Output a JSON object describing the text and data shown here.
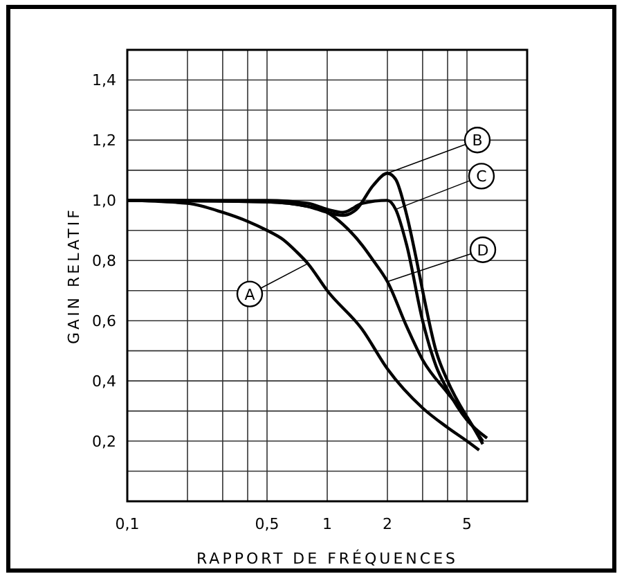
{
  "chart_data": {
    "type": "line",
    "xlabel": "RAPPORT DE FRÉQUENCES",
    "ylabel": "GAIN RELATIF",
    "log": "x",
    "xlim": [
      0.1,
      10
    ],
    "ylim": [
      0,
      1.5
    ],
    "xticks": [
      {
        "value": 0.1,
        "label": "0,1"
      },
      {
        "value": 0.2,
        "label": null
      },
      {
        "value": 0.3,
        "label": null
      },
      {
        "value": 0.4,
        "label": null
      },
      {
        "value": 0.5,
        "label": "0,5"
      },
      1,
      2,
      {
        "value": 3,
        "label": null
      },
      {
        "value": 4,
        "label": null
      },
      5,
      {
        "value": 10,
        "label": null
      }
    ],
    "yticks": [
      {
        "value": 0.1,
        "label": null
      },
      {
        "value": 0.2,
        "label": "0,2"
      },
      {
        "value": 0.3,
        "label": null
      },
      {
        "value": 0.4,
        "label": "0,4"
      },
      {
        "value": 0.5,
        "label": null
      },
      {
        "value": 0.6,
        "label": "0,6"
      },
      {
        "value": 0.7,
        "label": null
      },
      {
        "value": 0.8,
        "label": "0,8"
      },
      {
        "value": 0.9,
        "label": null
      },
      {
        "value": 1.0,
        "label": "1,0"
      },
      {
        "value": 1.1,
        "label": null
      },
      {
        "value": 1.2,
        "label": "1,2"
      },
      {
        "value": 1.3,
        "label": null
      },
      {
        "value": 1.4,
        "label": "1,4"
      }
    ],
    "grid": true,
    "line_style": "solid",
    "marker": "none",
    "series": [
      {
        "name": "A",
        "color": "#000000",
        "x": [
          0.1,
          0.2,
          0.3,
          0.4,
          0.5,
          0.6,
          0.7,
          0.8,
          1,
          1.5,
          2,
          3,
          4,
          5,
          5.75
        ],
        "values": [
          1.0,
          0.99,
          0.96,
          0.93,
          0.9,
          0.87,
          0.83,
          0.79,
          0.7,
          0.57,
          0.44,
          0.31,
          0.245,
          0.2,
          0.17
        ]
      },
      {
        "name": "B",
        "color": "#000000",
        "x": [
          0.1,
          0.5,
          0.8,
          1,
          1.2,
          1.4,
          1.7,
          2,
          2.2,
          2.5,
          2.8,
          3,
          3.5,
          4,
          5,
          6
        ],
        "values": [
          1.0,
          0.995,
          0.98,
          0.96,
          0.95,
          0.97,
          1.05,
          1.09,
          1.07,
          0.95,
          0.8,
          0.7,
          0.5,
          0.4,
          0.28,
          0.2
        ]
      },
      {
        "name": "C",
        "color": "#000000",
        "x": [
          0.1,
          0.5,
          0.8,
          1,
          1.2,
          1.5,
          2,
          2.2,
          2.5,
          3,
          3.5,
          4,
          5,
          6.3
        ],
        "values": [
          1.0,
          1.0,
          0.99,
          0.97,
          0.96,
          0.99,
          1.0,
          0.97,
          0.85,
          0.6,
          0.45,
          0.37,
          0.27,
          0.21
        ]
      },
      {
        "name": "D",
        "color": "#000000",
        "x": [
          0.1,
          0.5,
          0.8,
          1,
          1.2,
          1.5,
          1.7,
          2,
          2.5,
          3,
          4,
          5,
          6
        ],
        "values": [
          1.0,
          0.995,
          0.98,
          0.96,
          0.92,
          0.85,
          0.8,
          0.73,
          0.58,
          0.47,
          0.36,
          0.28,
          0.19
        ]
      }
    ]
  }
}
